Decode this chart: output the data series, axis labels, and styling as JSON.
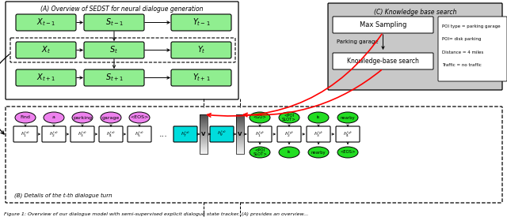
{
  "title_A": "(A) Overview of SEDST for neural dialogue generation",
  "title_C": "(C) Knowledge base search",
  "title_B": "(B) Details of the t-th dialogue turn",
  "green_fill": "#90EE90",
  "pink_fill": "#EE82EE",
  "bright_green": "#22DD22",
  "cyan_fill": "#00DDDD",
  "box_A_rows": [
    [
      "X_{t-1}",
      "S_{t-1}",
      "Y_{t-1}"
    ],
    [
      "X_t",
      "S_t",
      "Y_t"
    ],
    [
      "X_{t+1}",
      "S_{t+1}",
      "Y_{t+1}"
    ]
  ],
  "enc_words": [
    "Find",
    "a",
    "parking",
    "garage",
    "<EOS>"
  ],
  "dec_top": [
    "<GO>",
    "<POI\nSLOT>",
    "is",
    "nearby"
  ],
  "dec_bot": [
    "<POI\nSLOT>",
    "is",
    "nearby",
    "<EOS>"
  ],
  "kb_info": [
    "POI type = parking garage",
    "POI= disk parking",
    "Distance = 4 miles",
    "Traffic = no traffic"
  ],
  "caption": "Figure 1: Overview of our dialogue model with semi-supervised explicit dialogue state tracker. (A) provides an overview..."
}
